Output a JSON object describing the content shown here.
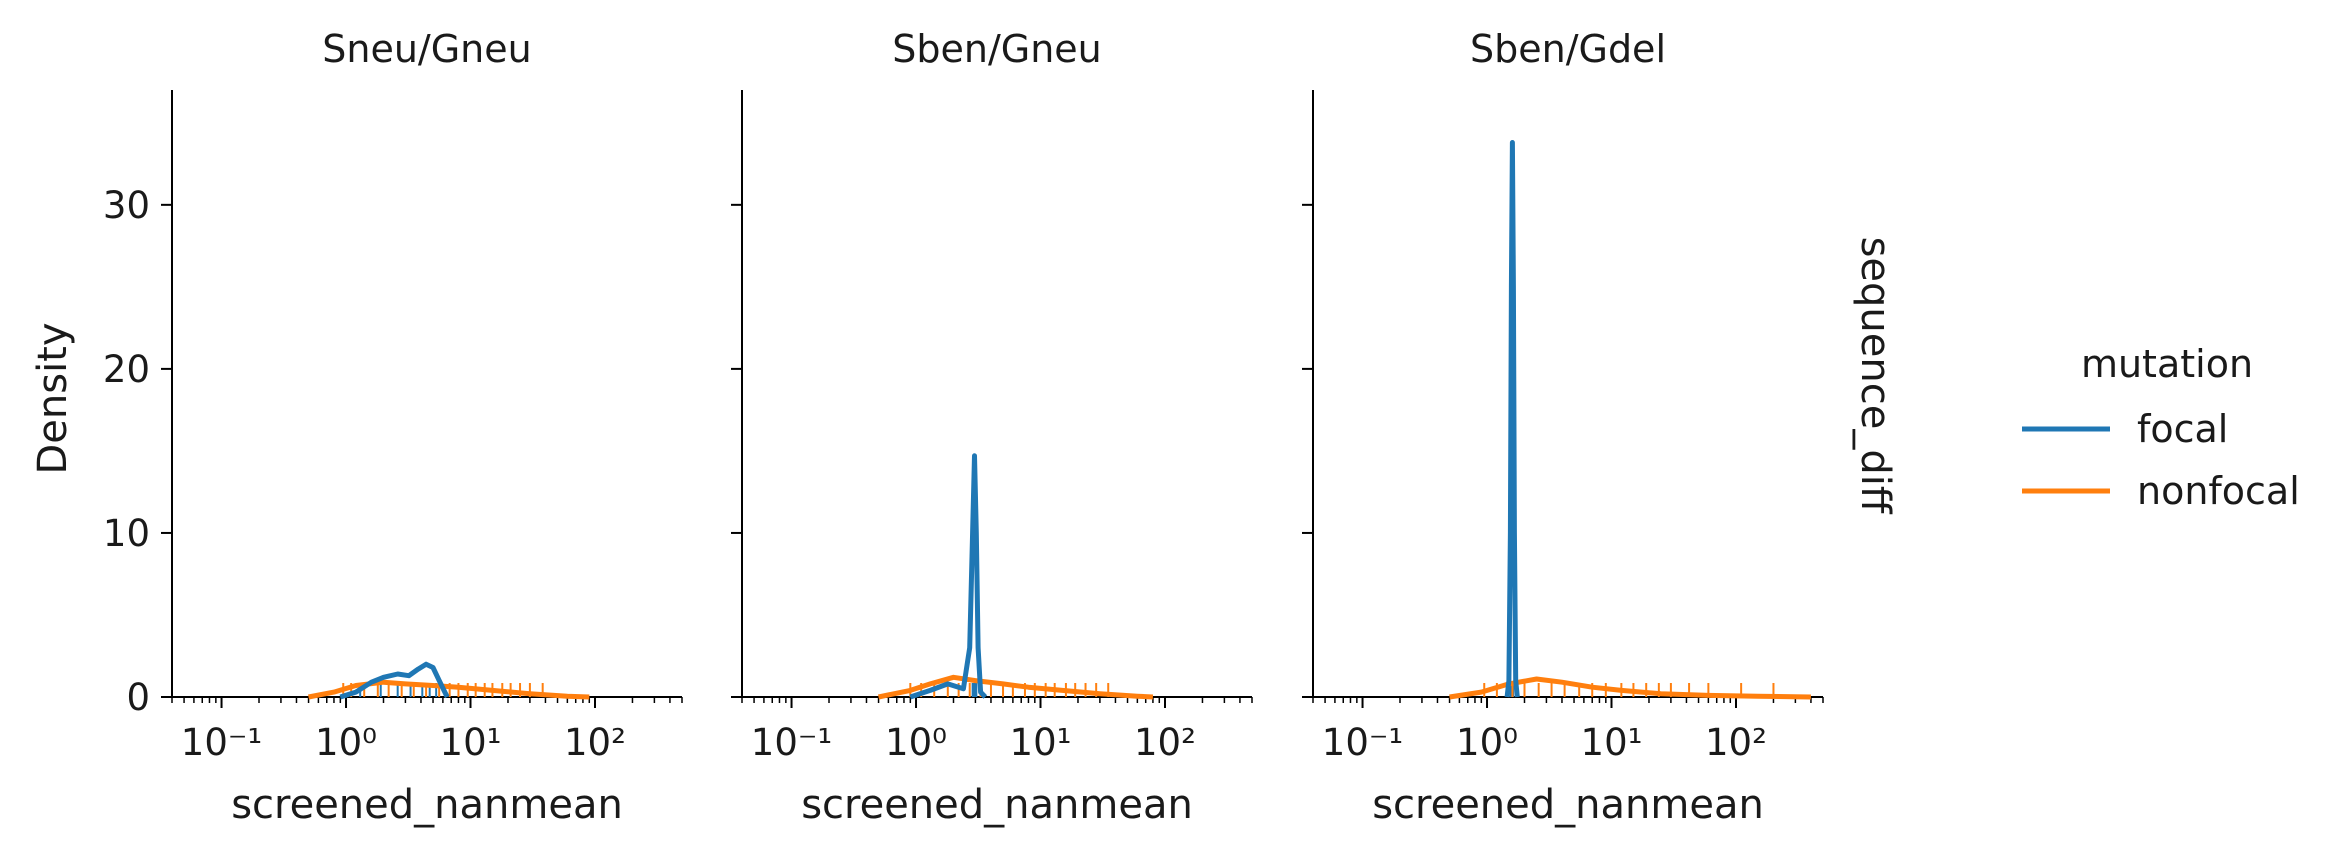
{
  "figure": {
    "row_label": "sequence_diff",
    "legend": {
      "title": "mutation",
      "entries": [
        {
          "label": "focal",
          "color": "#1f77b4"
        },
        {
          "label": "nonfocal",
          "color": "#ff7f0e"
        }
      ]
    }
  },
  "chart_data": [
    {
      "type": "line",
      "title": "Sneu/Gneu",
      "xlabel": "screened_nanmean",
      "ylabel": "Density",
      "xscale": "log",
      "xlim": [
        0.04,
        500
      ],
      "ylim": [
        0,
        37
      ],
      "x_ticks": [
        {
          "value": 0.1,
          "label": "10⁻¹"
        },
        {
          "value": 1,
          "label": "10⁰"
        },
        {
          "value": 10,
          "label": "10¹"
        },
        {
          "value": 100,
          "label": "10²"
        }
      ],
      "y_ticks": [
        {
          "value": 0,
          "label": "0"
        },
        {
          "value": 10,
          "label": "10"
        },
        {
          "value": 20,
          "label": "20"
        },
        {
          "value": 30,
          "label": "30"
        }
      ],
      "series": [
        {
          "name": "focal",
          "color": "#1f77b4",
          "x": [
            0.9,
            1.2,
            1.6,
            2.0,
            2.6,
            3.2,
            3.8,
            4.4,
            5.0,
            5.6,
            6.5
          ],
          "y": [
            0,
            0.3,
            0.9,
            1.2,
            1.4,
            1.3,
            1.7,
            2.0,
            1.8,
            1.0,
            0
          ]
        },
        {
          "name": "nonfocal",
          "color": "#ff7f0e",
          "x": [
            0.5,
            0.8,
            1.2,
            2.0,
            3.0,
            5.0,
            8.0,
            15,
            30,
            60,
            90
          ],
          "y": [
            0,
            0.3,
            0.7,
            0.9,
            0.8,
            0.7,
            0.6,
            0.4,
            0.2,
            0.05,
            0
          ]
        }
      ],
      "rug": {
        "focal": [
          1.3,
          1.9,
          2.6,
          3.3,
          4.1,
          4.7,
          5.3
        ],
        "nonfocal": [
          0.95,
          1.1,
          1.4,
          1.8,
          2.2,
          2.8,
          3.5,
          4.4,
          5.6,
          6.8,
          8.0,
          9.5,
          11,
          13,
          15,
          18,
          21,
          25,
          30,
          38
        ]
      }
    },
    {
      "type": "line",
      "title": "Sben/Gneu",
      "xlabel": "screened_nanmean",
      "ylabel": "",
      "xscale": "log",
      "xlim": [
        0.04,
        500
      ],
      "ylim": [
        0,
        37
      ],
      "x_ticks": [
        {
          "value": 0.1,
          "label": "10⁻¹"
        },
        {
          "value": 1,
          "label": "10⁰"
        },
        {
          "value": 10,
          "label": "10¹"
        },
        {
          "value": 100,
          "label": "10²"
        }
      ],
      "y_ticks": [
        {
          "value": 0,
          "label": ""
        },
        {
          "value": 10,
          "label": ""
        },
        {
          "value": 20,
          "label": ""
        },
        {
          "value": 30,
          "label": ""
        }
      ],
      "series": [
        {
          "name": "focal",
          "color": "#1f77b4",
          "x": [
            0.9,
            1.3,
            1.8,
            2.4,
            2.7,
            2.85,
            2.95,
            3.05,
            3.15,
            3.3,
            3.6
          ],
          "y": [
            0,
            0.4,
            0.8,
            0.5,
            3.0,
            10.0,
            14.7,
            10.0,
            3.0,
            0.3,
            0
          ]
        },
        {
          "name": "nonfocal",
          "color": "#ff7f0e",
          "x": [
            0.5,
            0.9,
            1.3,
            2.0,
            3.0,
            5.0,
            8.0,
            15,
            30,
            60,
            80
          ],
          "y": [
            0,
            0.4,
            0.8,
            1.2,
            1.0,
            0.8,
            0.6,
            0.4,
            0.2,
            0.05,
            0
          ]
        }
      ],
      "rug": {
        "focal": [
          2.85,
          2.95,
          3.0,
          3.05
        ],
        "nonfocal": [
          0.9,
          1.1,
          1.4,
          1.8,
          2.2,
          2.7,
          3.3,
          4.0,
          5.0,
          6.0,
          7.5,
          9.0,
          11,
          13,
          16,
          19,
          23,
          28,
          35
        ]
      }
    },
    {
      "type": "line",
      "title": "Sben/Gdel",
      "xlabel": "screened_nanmean",
      "ylabel": "",
      "xscale": "log",
      "xlim": [
        0.04,
        500
      ],
      "ylim": [
        0,
        37
      ],
      "x_ticks": [
        {
          "value": 0.1,
          "label": "10⁻¹"
        },
        {
          "value": 1,
          "label": "10⁰"
        },
        {
          "value": 10,
          "label": "10¹"
        },
        {
          "value": 100,
          "label": "10²"
        }
      ],
      "y_ticks": [
        {
          "value": 0,
          "label": ""
        },
        {
          "value": 10,
          "label": ""
        },
        {
          "value": 20,
          "label": ""
        },
        {
          "value": 30,
          "label": ""
        }
      ],
      "series": [
        {
          "name": "focal",
          "color": "#1f77b4",
          "x": [
            1.45,
            1.5,
            1.54,
            1.57,
            1.6,
            1.63,
            1.66,
            1.7,
            1.75
          ],
          "y": [
            0,
            1.0,
            10.0,
            25.0,
            33.8,
            25.0,
            10.0,
            1.0,
            0
          ]
        },
        {
          "name": "nonfocal",
          "color": "#ff7f0e",
          "x": [
            0.5,
            0.9,
            1.5,
            2.5,
            4.0,
            7.0,
            12,
            25,
            60,
            150,
            400
          ],
          "y": [
            0,
            0.3,
            0.8,
            1.1,
            0.9,
            0.6,
            0.4,
            0.2,
            0.1,
            0.05,
            0
          ]
        }
      ],
      "rug": {
        "focal": [
          1.55,
          1.58,
          1.6,
          1.62
        ],
        "nonfocal": [
          0.95,
          1.2,
          1.6,
          2.0,
          2.6,
          3.3,
          4.2,
          5.5,
          7.0,
          9.0,
          12,
          15,
          19,
          24,
          30,
          42,
          60,
          110,
          200
        ]
      }
    }
  ]
}
